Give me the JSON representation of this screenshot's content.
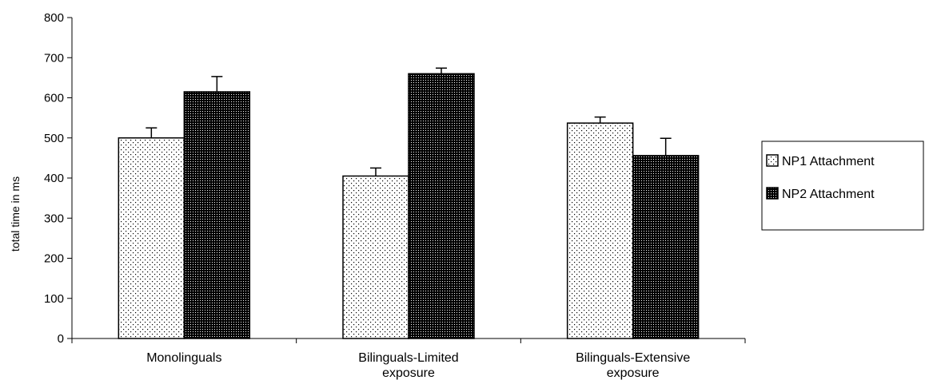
{
  "chart_data": {
    "type": "bar",
    "categories": [
      [
        "Monolinguals"
      ],
      [
        "Bilinguals-Limited",
        "exposure"
      ],
      [
        "Bilinguals-Extensive",
        "exposure"
      ]
    ],
    "series": [
      {
        "name": "NP1 Attachment",
        "values": [
          500,
          405,
          537
        ],
        "errors": [
          25,
          20,
          15
        ],
        "pattern": "sparse-dots"
      },
      {
        "name": "NP2 Attachment",
        "values": [
          615,
          660,
          456
        ],
        "errors": [
          38,
          14,
          43
        ],
        "pattern": "dense-dots"
      }
    ],
    "title": "",
    "xlabel": "",
    "ylabel": "total time in ms",
    "ylim": [
      0,
      800
    ],
    "yticks": [
      0,
      100,
      200,
      300,
      400,
      500,
      600,
      700,
      800
    ],
    "grid": false,
    "legend_position": "right"
  }
}
